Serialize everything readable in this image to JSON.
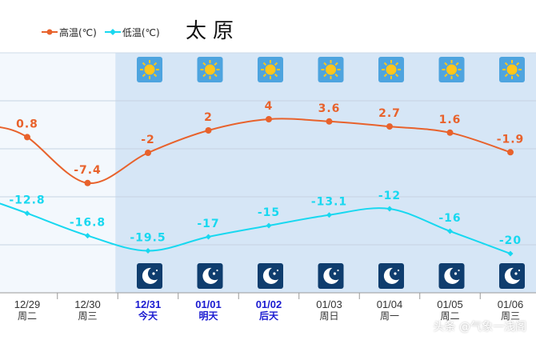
{
  "title": "太原",
  "watermark": "头条 @气象一浅阁",
  "legend": [
    {
      "name": "高温(℃)",
      "color": "#e8622c",
      "marker": "circle"
    },
    {
      "name": "低温(℃)",
      "color": "#18d8f0",
      "marker": "diamond"
    }
  ],
  "colors": {
    "high": "#e8622c",
    "low": "#18d8f0",
    "past_bg": "#f3f8fd",
    "forecast_bg": "#d6e6f6",
    "highlight_date": "#1a1ad0",
    "normal_date": "#333333"
  },
  "chart_data": {
    "type": "line",
    "title": "太原",
    "x": [
      "12/29",
      "12/30",
      "12/31",
      "01/01",
      "01/02",
      "01/03",
      "01/04",
      "01/05",
      "01/06"
    ],
    "weekday": [
      "周二",
      "周三",
      "今天",
      "明天",
      "后天",
      "周日",
      "周一",
      "周二",
      "周三"
    ],
    "highlighted": [
      false,
      false,
      true,
      true,
      true,
      false,
      false,
      false,
      false
    ],
    "day_icon": [
      null,
      null,
      "sunny-icon",
      "sunny-icon",
      "sunny-icon",
      "sunny-icon",
      "sunny-icon",
      "sunny-icon",
      "sunny-icon"
    ],
    "night_icon": [
      null,
      null,
      "clear-night-icon",
      "clear-night-icon",
      "clear-night-icon",
      "clear-night-icon",
      "clear-night-icon",
      "clear-night-icon",
      "clear-night-icon"
    ],
    "series": [
      {
        "name": "高温(℃)",
        "values": [
          0.8,
          -7.4,
          -2,
          2,
          4,
          3.6,
          2.7,
          1.6,
          -1.9
        ],
        "labels": [
          "0.8",
          "-7.4",
          "-2",
          "2",
          "4",
          "3.6",
          "2.7",
          "1.6",
          "-1.9"
        ]
      },
      {
        "name": "低温(℃)",
        "values": [
          -12.8,
          -16.8,
          -19.5,
          -17,
          -15,
          -13.1,
          -12,
          -16,
          -20
        ],
        "labels": [
          "-12.8",
          "-16.8",
          "-19.5",
          "-17",
          "-15",
          "-13.1",
          "-12",
          "-16",
          "-20"
        ]
      }
    ],
    "grid": true
  }
}
